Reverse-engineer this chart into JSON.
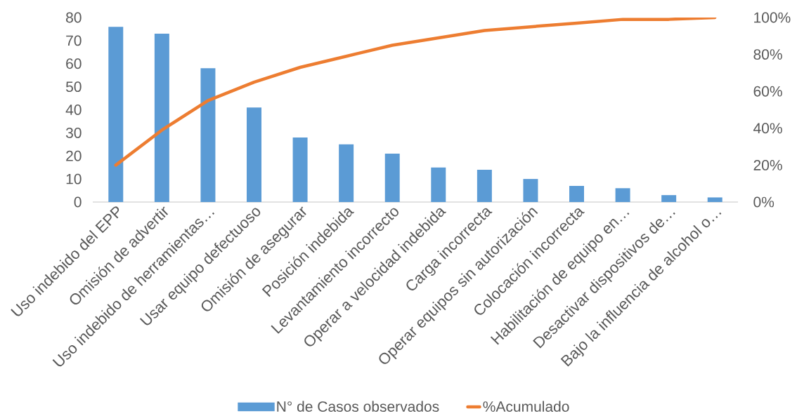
{
  "chart_data": {
    "type": "bar",
    "categories": [
      "Uso indebido del EPP",
      "Omisión de advertir",
      "Uso indebido de herramientas…",
      "Usar equipo defectuoso",
      "Omisión de asegurar",
      "Posición indebida",
      "Levantamiento incorrecto",
      "Operar a velocidad indebida",
      "Carga incorrecta",
      "Operar equipos sin autorización",
      "Colocación incorrecta",
      "Habilitación de equipo en…",
      "Desactivar dispositivos de…",
      "Bajo la influencia de alcohol o…"
    ],
    "series": [
      {
        "name": "N° de Casos observados",
        "color": "#5b9bd5",
        "values": [
          76,
          73,
          58,
          41,
          28,
          25,
          21,
          15,
          14,
          10,
          7,
          6,
          3,
          2
        ]
      },
      {
        "name": "%Acumulado",
        "type": "line",
        "axis": "y2",
        "color": "#ed7d31",
        "line_style": "solid",
        "values": [
          20,
          39,
          55,
          65,
          73,
          79,
          85,
          89,
          93,
          95,
          97,
          99,
          99,
          100
        ]
      }
    ],
    "ylim": [
      0,
      80
    ],
    "yticks": [
      0,
      10,
      20,
      30,
      40,
      50,
      60,
      70,
      80
    ],
    "y2lim": [
      0,
      100
    ],
    "y2ticks": [
      {
        "value": 0,
        "label": "0%"
      },
      {
        "value": 20,
        "label": "20%"
      },
      {
        "value": 40,
        "label": "40%"
      },
      {
        "value": 60,
        "label": "60%"
      },
      {
        "value": 80,
        "label": "80%"
      },
      {
        "value": 100,
        "label": "100%"
      }
    ],
    "legend": "bottom"
  }
}
